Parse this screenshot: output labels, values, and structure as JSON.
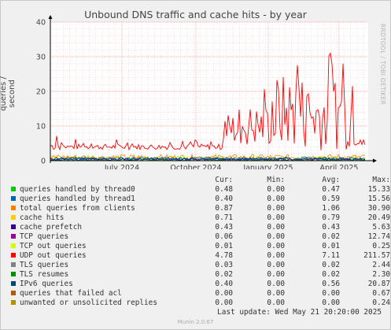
{
  "chart_data": {
    "type": "line",
    "title": "Unbound DNS traffic and cache hits - by year",
    "ylabel": "queries / second",
    "ylim": [
      0,
      40
    ],
    "yticks": [
      "0",
      "10",
      "20",
      "30",
      "40"
    ],
    "xticks": [
      "July 2024",
      "October 2024",
      "January 2025",
      "April 2025"
    ],
    "grid": true,
    "side_watermark": "RRDTOOL / TOBI OETIKER",
    "series": [
      {
        "name": "queries handled by thread0",
        "color": "#00cc00",
        "cur": "0.48",
        "min": "0.00",
        "avg": "0.47",
        "max": "15.33"
      },
      {
        "name": "queries handled by thread1",
        "color": "#0066b3",
        "cur": "0.40",
        "min": "0.00",
        "avg": "0.59",
        "max": "15.56"
      },
      {
        "name": "total queries from clients",
        "color": "#ff8000",
        "cur": "0.87",
        "min": "0.00",
        "avg": "1.06",
        "max": "30.90"
      },
      {
        "name": "cache hits",
        "color": "#ffcc00",
        "cur": "0.71",
        "min": "0.00",
        "avg": "0.79",
        "max": "20.49"
      },
      {
        "name": "cache prefetch",
        "color": "#330099",
        "cur": "0.43",
        "min": "0.00",
        "avg": "0.43",
        "max": "5.63"
      },
      {
        "name": "TCP queries",
        "color": "#990099",
        "cur": "0.06",
        "min": "0.00",
        "avg": "0.02",
        "max": "12.74"
      },
      {
        "name": "TCP out queries",
        "color": "#ccff00",
        "cur": "0.01",
        "min": "0.00",
        "avg": "0.01",
        "max": "0.25"
      },
      {
        "name": "UDP out queries",
        "color": "#ff0000",
        "cur": "4.78",
        "min": "0.00",
        "avg": "7.11",
        "max": "211.57"
      },
      {
        "name": "TLS queries",
        "color": "#808080",
        "cur": "0.03",
        "min": "0.00",
        "avg": "0.02",
        "max": "2.44"
      },
      {
        "name": "TLS resumes",
        "color": "#008f00",
        "cur": "0.02",
        "min": "0.00",
        "avg": "0.02",
        "max": "2.30"
      },
      {
        "name": "IPv6 queries",
        "color": "#00487d",
        "cur": "0.40",
        "min": "0.00",
        "avg": "0.56",
        "max": "20.87"
      },
      {
        "name": "queries that failed acl",
        "color": "#b35a00",
        "cur": "0.00",
        "min": "0.00",
        "avg": "0.00",
        "max": "0.67"
      },
      {
        "name": "unwanted or unsolicited replies",
        "color": "#b38f00",
        "cur": "0.00",
        "min": "0.00",
        "avg": "0.00",
        "max": "0.24"
      }
    ]
  },
  "legend_headers": {
    "cur": "Cur:",
    "min": "Min:",
    "avg": "Avg:",
    "max": "Max:"
  },
  "footer": {
    "last_update": "Last update: Wed May 21 20:20:00 2025",
    "version": "Munin 2.0.67"
  }
}
